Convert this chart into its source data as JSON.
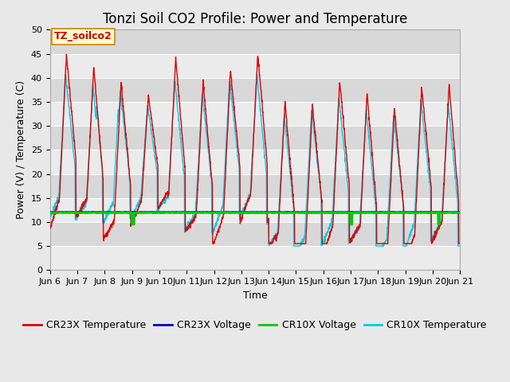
{
  "title": "Tonzi Soil CO2 Profile: Power and Temperature",
  "xlabel": "Time",
  "ylabel": "Power (V) / Temperature (C)",
  "ylim": [
    0,
    50
  ],
  "yticks": [
    0,
    5,
    10,
    15,
    20,
    25,
    30,
    35,
    40,
    45,
    50
  ],
  "xtick_labels": [
    "Jun 6",
    "Jun 7",
    "Jun 8",
    "Jun 9",
    "Jun 10",
    "Jun 11",
    "Jun 12",
    "Jun 13",
    "Jun 14",
    "Jun 15",
    "Jun 16",
    "Jun 17",
    "Jun 18",
    "Jun 19",
    "Jun 20",
    "Jun 21"
  ],
  "annotation_text": "TZ_soilco2",
  "annotation_color": "#cc0000",
  "annotation_bg": "#ffffcc",
  "annotation_border": "#cc8800",
  "cr23x_temp_color": "#dd0000",
  "cr23x_volt_color": "#0000cc",
  "cr10x_volt_color": "#00cc00",
  "cr10x_temp_color": "#00ccee",
  "fig_bg_color": "#e8e8e8",
  "plot_bg_color": "#e0e0e0",
  "band_light": "#ebebeb",
  "band_dark": "#d8d8d8",
  "grid_color": "#ffffff",
  "title_fontsize": 12,
  "label_fontsize": 9,
  "tick_fontsize": 8,
  "legend_fontsize": 9
}
